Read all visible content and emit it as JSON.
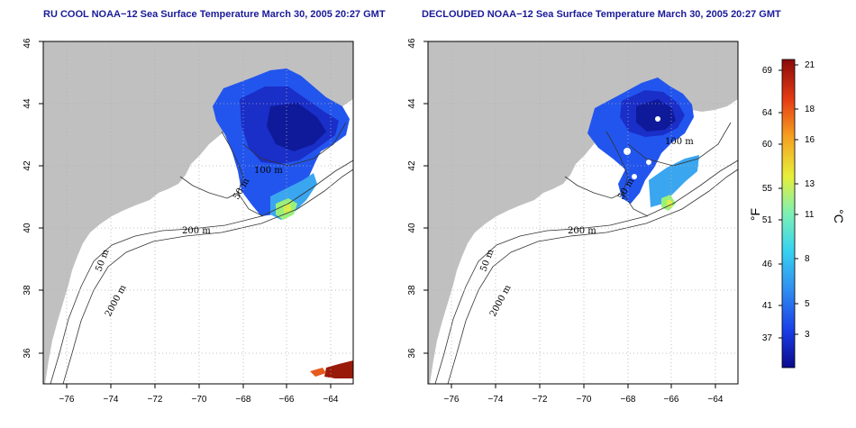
{
  "panels": [
    {
      "id": "ru-cool",
      "title": "RU COOL NOAA−12 Sea Surface Temperature March 30, 2005 20:27 GMT"
    },
    {
      "id": "declouded",
      "title": "DECLOUDED NOAA−12 Sea Surface Temperature March 30, 2005 20:27 GMT"
    }
  ],
  "axes": {
    "x_ticks": [
      "−76",
      "−74",
      "−72",
      "−70",
      "−68",
      "−66",
      "−64"
    ],
    "y_ticks": [
      "36",
      "38",
      "40",
      "42",
      "44",
      "46"
    ],
    "grid": "dotted"
  },
  "contours": {
    "left": [
      "200 m",
      "2000 m",
      "50 m",
      "50 m",
      "100 m"
    ],
    "right": [
      "200 m",
      "2000 m",
      "50 m",
      "50 m",
      "100 m"
    ]
  },
  "colorbar": {
    "fahrenheit_ticks": [
      "69",
      "64",
      "60",
      "55",
      "51",
      "46",
      "41",
      "37"
    ],
    "celsius_ticks": [
      "21",
      "18",
      "16",
      "13",
      "11",
      "8",
      "5",
      "3"
    ],
    "fahrenheit_unit": "°F",
    "celsius_unit": "°C",
    "colors": [
      "#0a0a8c",
      "#1a3ee6",
      "#2f8cf0",
      "#38d2f0",
      "#7df0b4",
      "#e6f03a",
      "#f5a020",
      "#e63c14",
      "#8a0a0a"
    ]
  },
  "colors": {
    "land": "#c0c0c0",
    "ocean": "#ffffff",
    "frame": "#000000",
    "title": "#1a1a9a"
  }
}
